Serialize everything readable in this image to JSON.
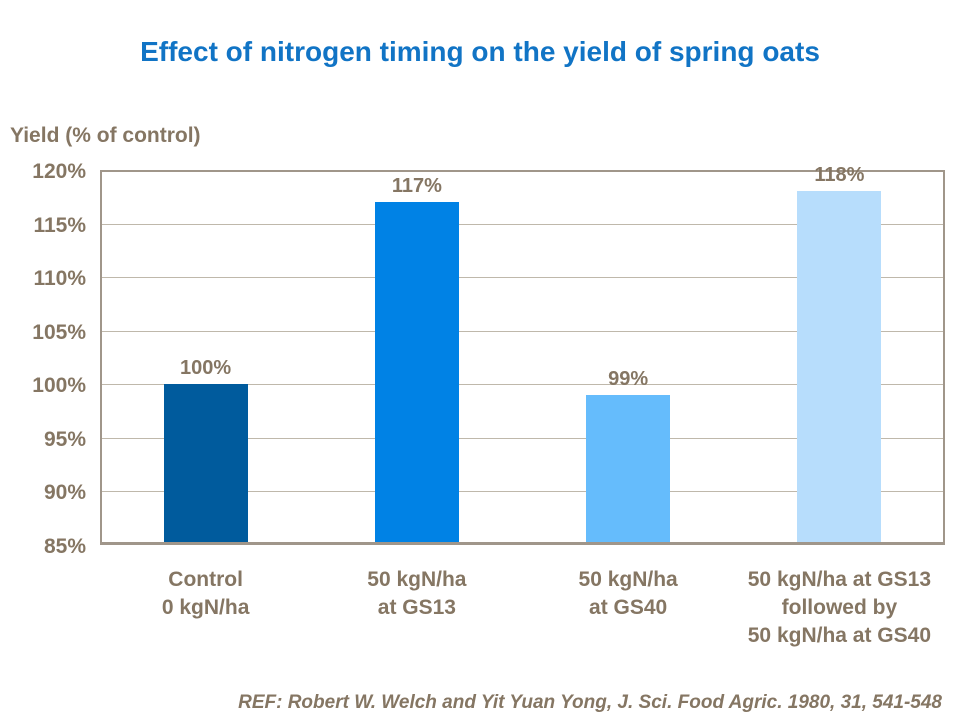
{
  "title": "Effect of nitrogen timing on the yield of spring oats",
  "reference": "REF: Robert W. Welch and Yit Yuan Yong, J. Sci. Food Agric. 1980, 31, 541-548",
  "colors": {
    "title_blue": "#1174C5",
    "text_brown": "#857663",
    "gridline": "#BFB8AB",
    "plot_border": "#A0968A"
  },
  "chart_data": {
    "type": "bar",
    "title": "Effect of nitrogen timing on the yield of spring oats",
    "ylabel": "Yield (% of control)",
    "xlabel": "",
    "categories": [
      "Control\n0 kgN/ha",
      "50 kgN/ha\nat GS13",
      "50 kgN/ha\nat GS40",
      "50 kgN/ha at GS13\nfollowed by\n50 kgN/ha at GS40"
    ],
    "values": [
      100,
      117,
      99,
      118
    ],
    "data_labels": [
      "100%",
      "117%",
      "99%",
      "118%"
    ],
    "bar_colors": [
      "#005B9D",
      "#0082E5",
      "#65BCFC",
      "#B7DDFC"
    ],
    "ylim": [
      85,
      120
    ],
    "ytick_step": 5,
    "ytick_labels": [
      "85%",
      "90%",
      "95%",
      "100%",
      "105%",
      "110%",
      "115%",
      "120%"
    ],
    "grid": true,
    "legend": "none"
  }
}
